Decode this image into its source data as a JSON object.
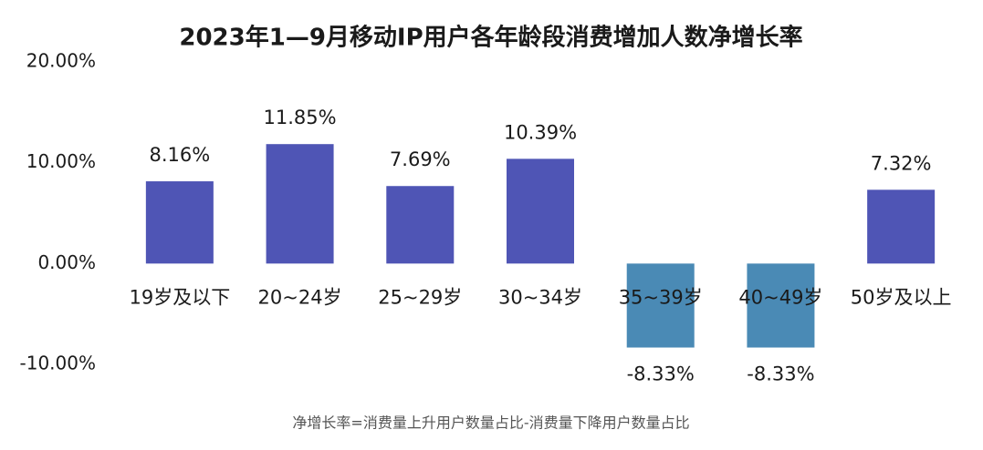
{
  "chart_data": {
    "type": "bar",
    "title": "2023年1—9月移动IP用户各年龄段消费增加人数净增长率",
    "note": "净增长率=消费量上升用户数量占比-消费量下降用户数量占比",
    "categories": [
      "19岁及以下",
      "20~24岁",
      "25~29岁",
      "30~34岁",
      "35~39岁",
      "40~49岁",
      "50岁及以上"
    ],
    "values": [
      8.16,
      11.85,
      7.69,
      10.39,
      -8.33,
      -8.33,
      7.32
    ],
    "value_labels": [
      "8.16%",
      "11.85%",
      "7.69%",
      "10.39%",
      "-8.33%",
      "-8.33%",
      "7.32%"
    ],
    "color": "#4f55b5",
    "negative_color": "#4a8ab5",
    "ylim": [
      -10,
      20
    ],
    "yticks": [
      {
        "value": -10,
        "label": "-10.00%"
      },
      {
        "value": 0,
        "label": "0.00%"
      },
      {
        "value": 10,
        "label": "10.00%"
      },
      {
        "value": 20,
        "label": "20.00%"
      }
    ],
    "grid": false
  }
}
